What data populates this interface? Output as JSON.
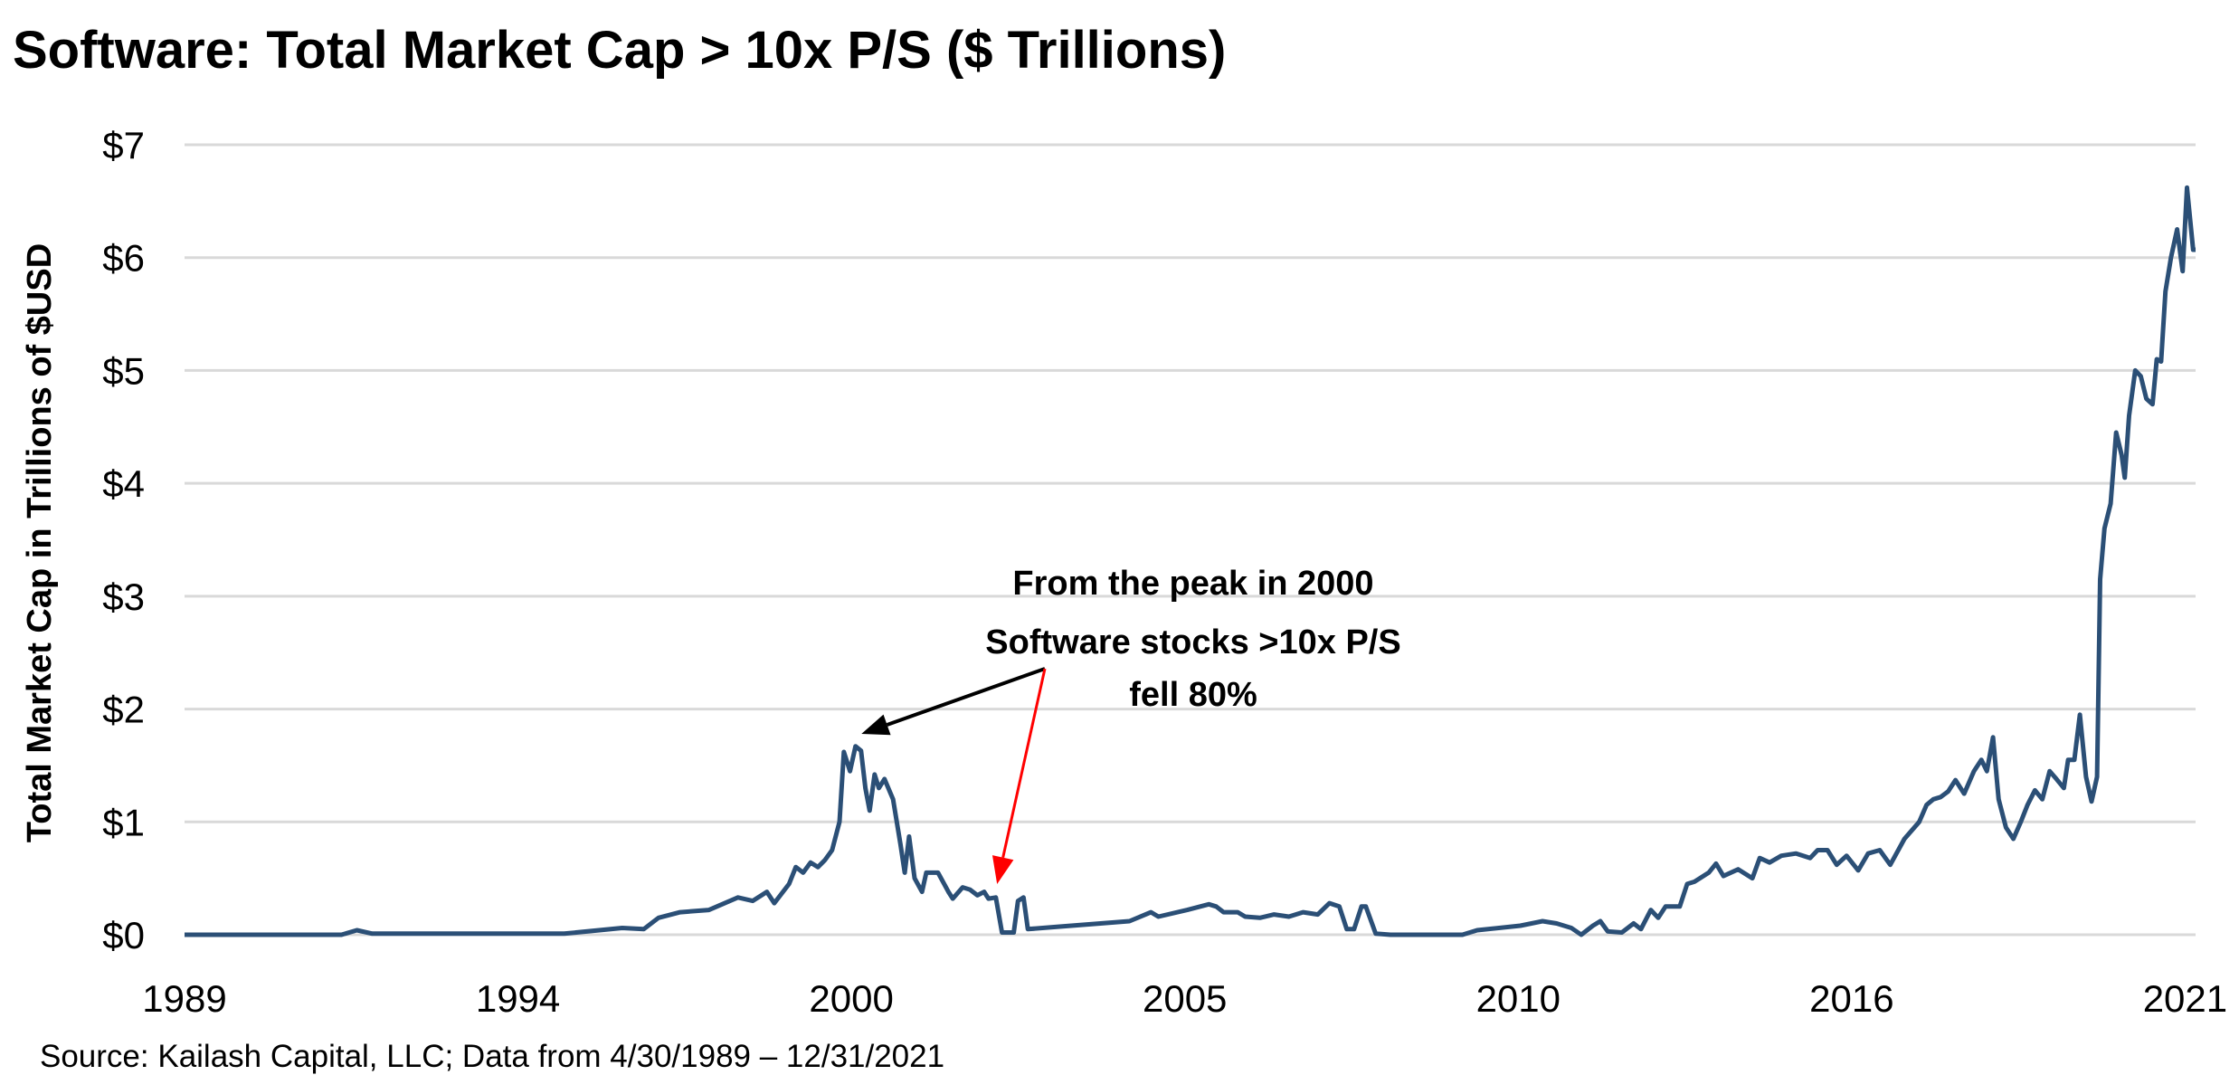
{
  "chart_data": {
    "type": "line",
    "title": "Software: Total Market Cap > 10x P/S ($ Trillions)",
    "ylabel": "Total Market Cap in Trillions of $USD",
    "xlabel": "",
    "source": "Source: Kailash Capital, LLC; Data from 4/30/1989 – 12/31/2021",
    "x_range": [
      "1989-04",
      "2021-12"
    ],
    "x_tick_labels": [
      "1989",
      "1994",
      "2000",
      "2005",
      "2010",
      "2016",
      "2021"
    ],
    "y_tick_labels": [
      "$0",
      "$1",
      "$2",
      "$3",
      "$4",
      "$5",
      "$6",
      "$7"
    ],
    "ylim": [
      0,
      7
    ],
    "grid": "horizontal",
    "legend": "none",
    "line_color": "#2b4f76",
    "annotation": {
      "lines": [
        "From the peak in 2000",
        "Software stocks >10x P/S",
        "fell 80%"
      ],
      "arrow_colors": [
        "#000000",
        "#ff0000"
      ],
      "arrow_targets_year": [
        2000.1,
        2002.45
      ]
    },
    "series": [
      {
        "x_year": [
          1989.25,
          1991.8,
          1992.05,
          1992.3,
          1995.42,
          1996.36,
          1996.71,
          1996.95,
          1997.3,
          1997.77,
          1998.24,
          1998.48,
          1998.71,
          1998.83,
          1999.07,
          1999.18,
          1999.3,
          1999.42,
          1999.54,
          1999.65,
          1999.77,
          1999.89,
          1999.96,
          2000.06,
          2000.15,
          2000.24,
          2000.31,
          2000.38,
          2000.46,
          2000.53,
          2000.62,
          2000.76,
          2000.88,
          2000.95,
          2001.02,
          2001.11,
          2001.23,
          2001.3,
          2001.49,
          2001.66,
          2001.73,
          2001.89,
          2002.01,
          2002.13,
          2002.24,
          2002.31,
          2002.43,
          2002.53,
          2002.72,
          2002.79,
          2002.88,
          2002.95,
          2003.42,
          2004.13,
          2004.6,
          2004.95,
          2005.07,
          2005.54,
          2005.89,
          2006.01,
          2006.13,
          2006.36,
          2006.48,
          2006.72,
          2006.95,
          2007.19,
          2007.42,
          2007.66,
          2007.85,
          2008.01,
          2008.13,
          2008.25,
          2008.37,
          2008.44,
          2008.6,
          2008.84,
          2010.01,
          2010.25,
          2010.95,
          2011.31,
          2011.54,
          2011.78,
          2011.94,
          2012.13,
          2012.25,
          2012.37,
          2012.6,
          2012.79,
          2012.91,
          2013.07,
          2013.19,
          2013.31,
          2013.54,
          2013.66,
          2013.78,
          2014.01,
          2014.13,
          2014.25,
          2014.49,
          2014.72,
          2014.84,
          2015.0,
          2015.19,
          2015.43,
          2015.66,
          2015.78,
          2015.94,
          2016.09,
          2016.25,
          2016.44,
          2016.6,
          2016.79,
          2016.96,
          2017.19,
          2017.43,
          2017.55,
          2017.66,
          2017.78,
          2017.9,
          2018.02,
          2018.16,
          2018.32,
          2018.44,
          2018.53,
          2018.63,
          2018.72,
          2018.84,
          2018.96,
          2019.08,
          2019.19,
          2019.31,
          2019.43,
          2019.55,
          2019.66,
          2019.78,
          2019.85,
          2019.95,
          2020.04,
          2020.14,
          2020.23,
          2020.32,
          2020.37,
          2020.44,
          2020.54,
          2020.63,
          2020.72,
          2020.77,
          2020.84,
          2020.94,
          2021.03,
          2021.12,
          2021.22,
          2021.29,
          2021.36,
          2021.43,
          2021.52,
          2021.62,
          2021.71,
          2021.78,
          2021.88,
          2021.92
        ],
        "values": [
          0,
          0,
          0.04,
          0.01,
          0.01,
          0.06,
          0.05,
          0.15,
          0.2,
          0.22,
          0.33,
          0.3,
          0.38,
          0.28,
          0.45,
          0.6,
          0.55,
          0.64,
          0.6,
          0.66,
          0.75,
          1.0,
          1.62,
          1.45,
          1.67,
          1.63,
          1.3,
          1.1,
          1.42,
          1.3,
          1.38,
          1.2,
          0.8,
          0.55,
          0.87,
          0.5,
          0.38,
          0.55,
          0.55,
          0.38,
          0.32,
          0.42,
          0.4,
          0.35,
          0.38,
          0.32,
          0.33,
          0.02,
          0.02,
          0.3,
          0.33,
          0.05,
          0.07,
          0.1,
          0.12,
          0.2,
          0.16,
          0.22,
          0.27,
          0.25,
          0.2,
          0.2,
          0.16,
          0.15,
          0.18,
          0.16,
          0.2,
          0.18,
          0.28,
          0.25,
          0.05,
          0.05,
          0.25,
          0.25,
          0.01,
          0,
          0,
          0.04,
          0.08,
          0.12,
          0.1,
          0.06,
          0,
          0.08,
          0.12,
          0.03,
          0.02,
          0.1,
          0.05,
          0.22,
          0.15,
          0.25,
          0.25,
          0.45,
          0.47,
          0.55,
          0.63,
          0.52,
          0.58,
          0.5,
          0.68,
          0.64,
          0.7,
          0.72,
          0.68,
          0.75,
          0.75,
          0.62,
          0.7,
          0.57,
          0.72,
          0.75,
          0.62,
          0.85,
          1.0,
          1.15,
          1.2,
          1.22,
          1.27,
          1.37,
          1.25,
          1.45,
          1.55,
          1.45,
          1.75,
          1.2,
          0.95,
          0.85,
          1.0,
          1.15,
          1.28,
          1.2,
          1.45,
          1.38,
          1.3,
          1.55,
          1.55,
          1.95,
          1.4,
          1.18,
          1.4,
          3.15,
          3.6,
          3.82,
          4.45,
          4.25,
          4.05,
          4.6,
          5.0,
          4.95,
          4.75,
          4.7,
          5.1,
          5.08,
          5.7,
          6.0,
          6.25,
          5.88,
          6.62,
          6.07,
          6.07
        ]
      }
    ]
  }
}
